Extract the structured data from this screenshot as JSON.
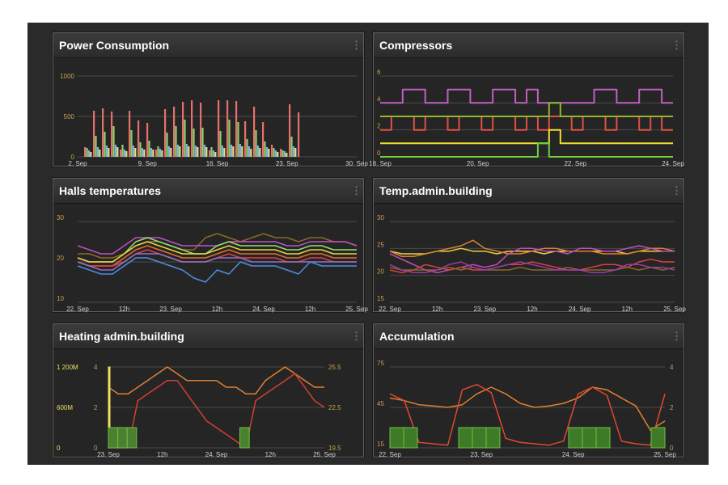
{
  "panels": {
    "power": {
      "title": "Power Consumption",
      "chart_data": {
        "type": "bar",
        "title": "Power Consumption",
        "y_ticks": [
          "0",
          "500",
          "1000"
        ],
        "ylim": [
          0,
          1000
        ],
        "x_ticks": [
          "2. Sep",
          "9. Sep",
          "16. Sep",
          "23. Sep",
          "30. Sep"
        ],
        "grid": true,
        "colors": {
          "red": "#e8706c",
          "green": "#8bd16b",
          "blue": "#7db1e6",
          "yellow": "#e8e080"
        },
        "series": [
          {
            "color_key": "red",
            "values": [
              120,
              570,
              600,
              560,
              90,
              570,
              450,
              420,
              90,
              590,
              620,
              680,
              700,
              670,
              80,
              700,
              700,
              690,
              440,
              620,
              430,
              150,
              100,
              650,
              550
            ]
          },
          {
            "color_key": "green",
            "values": [
              110,
              260,
              310,
              380,
              150,
              330,
              180,
              200,
              130,
              300,
              380,
              460,
              350,
              360,
              120,
              320,
              460,
              430,
              220,
              330,
              190,
              110,
              80,
              250,
              0
            ]
          },
          {
            "color_key": "blue",
            "values": [
              80,
              120,
              140,
              150,
              90,
              140,
              110,
              110,
              100,
              130,
              150,
              160,
              140,
              150,
              80,
              140,
              150,
              160,
              130,
              140,
              120,
              80,
              70,
              130,
              0
            ]
          },
          {
            "color_key": "yellow",
            "values": [
              60,
              90,
              110,
              120,
              70,
              110,
              90,
              90,
              80,
              110,
              130,
              130,
              120,
              120,
              60,
              110,
              130,
              130,
              100,
              110,
              100,
              60,
              50,
              110,
              0
            ]
          }
        ]
      }
    },
    "compressors": {
      "title": "Compressors",
      "chart_data": {
        "type": "line",
        "title": "Compressors",
        "y_ticks": [
          "0",
          "2",
          "4",
          "6"
        ],
        "ylim": [
          0,
          6
        ],
        "x_ticks": [
          "18. Sep",
          "20. Sep",
          "22. Sep",
          "24. Sep"
        ],
        "grid": true,
        "series": [
          {
            "color": "#c060c0",
            "values": [
              4,
              4,
              5,
              5,
              4,
              4,
              5,
              5,
              4,
              4,
              5,
              5,
              4,
              5,
              4,
              4,
              4,
              4,
              4,
              5,
              5,
              4,
              4,
              5,
              5,
              4
            ]
          },
          {
            "color": "#e05040",
            "values": [
              2,
              3,
              3,
              2,
              3,
              3,
              2,
              3,
              3,
              2,
              3,
              3,
              2,
              3,
              2,
              3,
              3,
              2,
              3,
              3,
              2,
              3,
              3,
              2,
              3,
              2
            ]
          },
          {
            "color": "#90b830",
            "values": [
              3,
              3,
              3,
              3,
              3,
              3,
              3,
              3,
              3,
              3,
              3,
              3,
              3,
              3,
              3,
              4,
              3,
              3,
              3,
              3,
              3,
              3,
              3,
              3,
              3,
              3
            ]
          },
          {
            "color": "#f0e030",
            "values": [
              1,
              1,
              1,
              1,
              1,
              1,
              1,
              1,
              1,
              1,
              1,
              1,
              1,
              1,
              1,
              2,
              1,
              1,
              1,
              1,
              1,
              1,
              1,
              1,
              1,
              1
            ]
          },
          {
            "color": "#70d040",
            "values": [
              0,
              0,
              0,
              0,
              0,
              0,
              0,
              0,
              0,
              0,
              0,
              0,
              0,
              0,
              1,
              0,
              0,
              0,
              0,
              0,
              0,
              0,
              0,
              0,
              0,
              0
            ]
          }
        ]
      }
    },
    "halls": {
      "title": "Halls temperatures",
      "chart_data": {
        "type": "line",
        "title": "Halls temperatures",
        "y_ticks": [
          "10",
          "20",
          "30"
        ],
        "ylim": [
          10,
          30
        ],
        "x_ticks": [
          "22. Sep",
          "12h",
          "23. Sep",
          "12h",
          "24. Sep",
          "12h",
          "25. Sep"
        ],
        "grid": true,
        "series": [
          {
            "color": "#8a6a2a",
            "values": [
              22,
              22,
              21,
              21,
              22,
              24,
              25,
              25,
              24,
              23,
              23,
              26,
              27,
              26,
              25,
              26,
              27,
              26,
              26,
              25,
              26,
              26,
              25,
              25,
              24
            ]
          },
          {
            "color": "#c050c0",
            "values": [
              24,
              23,
              22,
              22,
              24,
              26,
              26,
              26,
              25,
              24,
              24,
              24,
              24,
              25,
              25,
              25,
              25,
              25,
              24,
              24,
              25,
              25,
              25,
              25,
              24
            ]
          },
          {
            "color": "#90e070",
            "values": [
              21,
              20,
              20,
              20,
              22,
              25,
              26,
              25,
              24,
              23,
              22,
              22,
              24,
              25,
              24,
              24,
              24,
              24,
              23,
              23,
              24,
              24,
              23,
              23,
              23
            ]
          },
          {
            "color": "#f0d040",
            "values": [
              21,
              20,
              20,
              20,
              22,
              24,
              25,
              24,
              23,
              22,
              22,
              22,
              23,
              24,
              23,
              23,
              23,
              23,
              22,
              22,
              23,
              23,
              22,
              22,
              22
            ]
          },
          {
            "color": "#e07030",
            "values": [
              20,
              19,
              19,
              19,
              21,
              23,
              24,
              23,
              22,
              21,
              21,
              21,
              22,
              23,
              22,
              22,
              22,
              22,
              21,
              21,
              22,
              22,
              21,
              21,
              21
            ]
          },
          {
            "color": "#e04040",
            "values": [
              20,
              19,
              19,
              19,
              20,
              22,
              23,
              22,
              21,
              20,
              20,
              20,
              21,
              22,
              21,
              21,
              21,
              21,
              20,
              20,
              21,
              21,
              20,
              20,
              20
            ]
          },
          {
            "color": "#9070d0",
            "values": [
              20,
              19,
              18,
              18,
              20,
              22,
              22,
              22,
              21,
              20,
              20,
              20,
              21,
              21,
              21,
              20,
              20,
              20,
              20,
              20,
              20,
              20,
              20,
              20,
              20
            ]
          },
          {
            "color": "#4a90e0",
            "values": [
              19,
              18,
              17,
              17,
              19,
              21,
              21,
              20,
              19,
              18,
              16,
              15,
              18,
              17,
              20,
              19,
              19,
              19,
              18,
              17,
              20,
              19,
              19,
              19,
              19
            ]
          }
        ]
      }
    },
    "admin_temp": {
      "title": "Temp.admin.building",
      "chart_data": {
        "type": "line",
        "title": "Temp.admin.building",
        "y_ticks": [
          "15",
          "20",
          "25",
          "30"
        ],
        "ylim": [
          15,
          30
        ],
        "x_ticks": [
          "22. Sep",
          "12h",
          "23. Sep",
          "12h",
          "24. Sep",
          "12h",
          "25. Sep"
        ],
        "grid": true,
        "series": [
          {
            "color": "#f0d040",
            "values": [
              24.5,
              24,
              24,
              24,
              24.5,
              24.5,
              25,
              24.5,
              24.5,
              24,
              24.5,
              24.5,
              24.5,
              24,
              24.5,
              24.5,
              24.5,
              24.5,
              24.5,
              24.5,
              24,
              24.5,
              24.5,
              24.5,
              24.5
            ]
          },
          {
            "color": "#e08030",
            "values": [
              24.5,
              23.5,
              23.5,
              24,
              24.5,
              25,
              25.5,
              26.5,
              25,
              24.5,
              24,
              24,
              24.5,
              25,
              25,
              24.5,
              24.5,
              24.5,
              24,
              24,
              24,
              24.5,
              25,
              25,
              24.5
            ]
          },
          {
            "color": "#c050c0",
            "values": [
              24,
              23,
              22,
              21,
              20.5,
              21,
              21.5,
              22,
              21.5,
              22,
              24,
              25,
              25,
              24.5,
              24.5,
              24,
              25,
              25,
              24.5,
              24.5,
              25,
              25.5,
              25,
              24.5,
              24.5
            ]
          },
          {
            "color": "#e04040",
            "values": [
              21,
              20.5,
              21,
              22,
              21.5,
              21,
              21.5,
              21,
              21,
              21.5,
              22,
              22,
              22.5,
              22,
              21.5,
              21,
              21,
              21.5,
              22,
              22,
              21.5,
              22.5,
              23,
              22.5,
              22.5
            ]
          },
          {
            "color": "#8a6a2a",
            "values": [
              21.5,
              21,
              21,
              21,
              21,
              21.5,
              21,
              21.5,
              21,
              21,
              21,
              21.5,
              21,
              21,
              21,
              21.5,
              21,
              21,
              21,
              21,
              21.5,
              21,
              21.5,
              21,
              21.5
            ]
          },
          {
            "color": "#9a3ab0",
            "values": [
              22,
              21,
              20.5,
              20.5,
              21,
              22,
              22.5,
              21.5,
              21,
              21.5,
              22,
              22.5,
              22,
              21.5,
              21,
              21,
              21,
              20.5,
              20.5,
              21,
              22,
              22,
              21.5,
              21.5,
              21
            ]
          }
        ]
      }
    },
    "heating": {
      "title": "Heating admin.building",
      "chart_data": {
        "type": "line",
        "title": "Heating admin.building",
        "y_left_ticks": [
          "0",
          "600M",
          "1 200M"
        ],
        "y_mid_ticks": [
          "0",
          "2",
          "4"
        ],
        "y_right_ticks": [
          "19.5",
          "22.5",
          "25.5"
        ],
        "x_ticks": [
          "23. Sep",
          "12h",
          "24. Sep",
          "12h",
          "25. Sep"
        ],
        "grid": true,
        "series": [
          {
            "color": "#e08030",
            "axis": "right",
            "values": [
              24,
              23.5,
              23.5,
              24,
              24.5,
              25,
              25.5,
              25,
              24.5,
              24.5,
              24.5,
              24.5,
              24,
              24,
              23.5,
              23.5,
              24.5,
              25,
              25.5,
              25,
              24.5,
              24,
              24
            ]
          },
          {
            "color": "#d04030",
            "axis": "right",
            "values": [
              19.5,
              19.5,
              19.5,
              23,
              23.5,
              24,
              24.5,
              24.5,
              23.5,
              22.5,
              21.5,
              21,
              20.5,
              20,
              19.5,
              23,
              23.5,
              24,
              24.5,
              25,
              24,
              23,
              22.5
            ]
          },
          {
            "color": "#f0e060",
            "axis": "left",
            "values": [
              1200,
              0,
              0,
              0,
              0,
              0,
              0,
              0,
              0,
              0,
              0,
              0,
              0,
              0,
              0,
              0,
              0,
              0,
              0,
              0,
              0,
              0,
              0
            ]
          },
          {
            "color": "#70c040",
            "axis": "mid",
            "values": [
              1,
              1,
              1,
              0,
              0,
              0,
              0,
              0,
              0,
              0,
              0,
              0,
              0,
              0,
              1,
              0,
              0,
              0,
              0,
              0,
              0,
              0,
              0
            ]
          }
        ]
      }
    },
    "accumulation": {
      "title": "Accumulation",
      "chart_data": {
        "type": "line",
        "title": "Accumulation",
        "y_left_ticks": [
          "15",
          "45",
          "75"
        ],
        "y_right_ticks": [
          "0",
          "2",
          "4"
        ],
        "x_ticks": [
          "22. Sep",
          "23. Sep",
          "24. Sep",
          "25. Sep"
        ],
        "grid": true,
        "series": [
          {
            "color": "#e08030",
            "axis": "left",
            "values": [
              52,
              50,
              47,
              46,
              45,
              47,
              55,
              60,
              55,
              48,
              45,
              46,
              48,
              52,
              60,
              58,
              52,
              46,
              28,
              35
            ]
          },
          {
            "color": "#e04830",
            "axis": "left",
            "values": [
              55,
              50,
              19,
              18,
              17,
              58,
              62,
              56,
              22,
              19,
              18,
              17,
              20,
              55,
              60,
              54,
              20,
              18,
              17,
              55
            ]
          },
          {
            "color": "#70c040",
            "axis": "right",
            "values": [
              1,
              1,
              0,
              0,
              0,
              1,
              1,
              1,
              0,
              0,
              0,
              0,
              0,
              1,
              1,
              1,
              0,
              0,
              0,
              1
            ]
          }
        ]
      }
    }
  },
  "colors": {
    "background": "#2a2a2a",
    "panel_bg": "#252525",
    "axis_text": "#c8a050",
    "tick_text": "#d0d0d0",
    "grid": "#4a4a4a"
  }
}
